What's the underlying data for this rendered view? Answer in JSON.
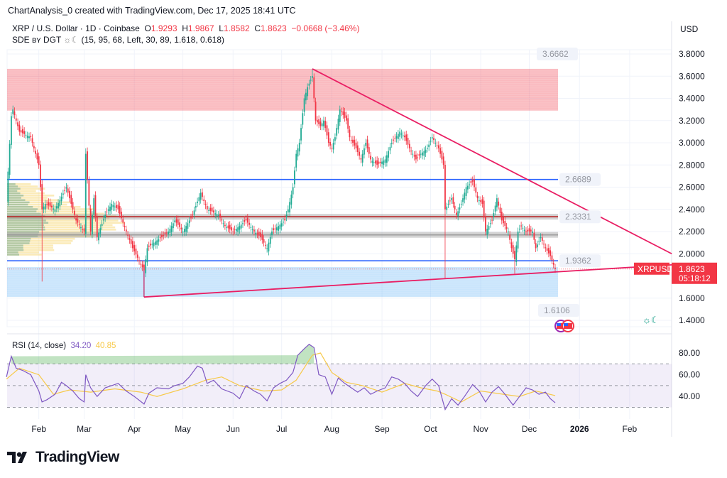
{
  "header": {
    "credit": "ChartAnalysis_0 created with TradingView.com, Dec 17, 2025 18:41 UTC",
    "symbol": "XRP / U.S. Dollar · 1D · Coinbase",
    "open_label": "O",
    "open": "1.9293",
    "high_label": "H",
    "high": "1.9867",
    "low_label": "L",
    "low": "1.8582",
    "close_label": "C",
    "close": "1.8623",
    "change": "−0.0668 (−3.46%)",
    "indicator": "SDE ʙʏ DGT",
    "indicator_icon": "sun-moon-icon",
    "indicator_params": "(15, 95, 68, Left, 30, 89, 1.618, 0.618)",
    "currency": "USD"
  },
  "colors": {
    "up": "#22ab94",
    "down": "#f23645",
    "accent": "#f23645",
    "rsi": "#7e57c2",
    "rsi_ma": "#f7c948",
    "support": "#2962ff",
    "trend": "#e91e63"
  },
  "chart_data": [
    {
      "type": "candlestick",
      "title": "XRP / U.S. Dollar · 1D · Coinbase",
      "ylim": [
        1.3,
        3.9
      ],
      "y_ticks": [
        "3.8000",
        "3.6000",
        "3.4000",
        "3.2000",
        "3.0000",
        "2.8000",
        "2.6000",
        "2.4000",
        "2.2000",
        "2.0000",
        "1.6000",
        "1.4000"
      ],
      "x_ticks": [
        [
          "2025-02-01",
          "Feb"
        ],
        [
          "2025-03-01",
          "Mar"
        ],
        [
          "2025-04-01",
          "Apr"
        ],
        [
          "2025-05-01",
          "May"
        ],
        [
          "2025-06-01",
          "Jun"
        ],
        [
          "2025-07-01",
          "Jul"
        ],
        [
          "2025-08-01",
          "Aug"
        ],
        [
          "2025-09-01",
          "Sep"
        ],
        [
          "2025-10-01",
          "Oct"
        ],
        [
          "2025-11-01",
          "Nov"
        ],
        [
          "2025-12-01",
          "Dec"
        ],
        [
          "2026-01-01",
          "2026"
        ],
        [
          "2026-02-01",
          "Feb"
        ]
      ],
      "closes": [
        [
          "2025-01-12",
          2.49
        ],
        [
          "2025-01-15",
          3.24
        ],
        [
          "2025-01-16",
          3.3
        ],
        [
          "2025-01-20",
          3.1
        ],
        [
          "2025-01-27",
          3.05
        ],
        [
          "2025-02-01",
          2.8
        ],
        [
          "2025-02-03",
          2.4
        ],
        [
          "2025-02-05",
          2.45
        ],
        [
          "2025-02-11",
          2.4
        ],
        [
          "2025-02-18",
          2.6
        ],
        [
          "2025-02-24",
          2.3
        ],
        [
          "2025-03-01",
          2.2
        ],
        [
          "2025-03-02",
          2.9
        ],
        [
          "2025-03-05",
          2.2
        ],
        [
          "2025-03-07",
          2.5
        ],
        [
          "2025-03-09",
          2.15
        ],
        [
          "2025-03-14",
          2.35
        ],
        [
          "2025-03-18",
          2.45
        ],
        [
          "2025-03-22",
          2.4
        ],
        [
          "2025-03-27",
          2.2
        ],
        [
          "2025-03-31",
          2.05
        ],
        [
          "2025-04-07",
          1.85
        ],
        [
          "2025-04-09",
          2.05
        ],
        [
          "2025-04-13",
          2.1
        ],
        [
          "2025-04-18",
          2.15
        ],
        [
          "2025-04-22",
          2.2
        ],
        [
          "2025-04-26",
          2.3
        ],
        [
          "2025-05-01",
          2.2
        ],
        [
          "2025-05-07",
          2.35
        ],
        [
          "2025-05-12",
          2.55
        ],
        [
          "2025-05-16",
          2.4
        ],
        [
          "2025-05-23",
          2.35
        ],
        [
          "2025-05-27",
          2.25
        ],
        [
          "2025-06-01",
          2.2
        ],
        [
          "2025-06-05",
          2.25
        ],
        [
          "2025-06-09",
          2.3
        ],
        [
          "2025-06-14",
          2.2
        ],
        [
          "2025-06-18",
          2.15
        ],
        [
          "2025-06-22",
          2.05
        ],
        [
          "2025-06-25",
          2.2
        ],
        [
          "2025-06-29",
          2.25
        ],
        [
          "2025-07-03",
          2.3
        ],
        [
          "2025-07-05",
          2.4
        ],
        [
          "2025-07-08",
          2.6
        ],
        [
          "2025-07-10",
          2.9
        ],
        [
          "2025-07-12",
          3.0
        ],
        [
          "2025-07-15",
          3.4
        ],
        [
          "2025-07-17",
          3.5
        ],
        [
          "2025-07-20",
          3.6
        ],
        [
          "2025-07-22",
          3.2
        ],
        [
          "2025-07-25",
          3.15
        ],
        [
          "2025-07-27",
          3.2
        ],
        [
          "2025-07-30",
          3.0
        ],
        [
          "2025-08-01",
          2.95
        ],
        [
          "2025-08-03",
          3.05
        ],
        [
          "2025-08-06",
          3.3
        ],
        [
          "2025-08-10",
          3.2
        ],
        [
          "2025-08-12",
          3.05
        ],
        [
          "2025-08-16",
          2.95
        ],
        [
          "2025-08-19",
          2.85
        ],
        [
          "2025-08-22",
          3.0
        ],
        [
          "2025-08-25",
          2.85
        ],
        [
          "2025-08-29",
          2.8
        ],
        [
          "2025-09-03",
          2.85
        ],
        [
          "2025-09-07",
          3.0
        ],
        [
          "2025-09-12",
          3.1
        ],
        [
          "2025-09-15",
          3.05
        ],
        [
          "2025-09-18",
          2.95
        ],
        [
          "2025-09-22",
          2.85
        ],
        [
          "2025-09-25",
          2.9
        ],
        [
          "2025-09-29",
          2.95
        ],
        [
          "2025-10-02",
          3.05
        ],
        [
          "2025-10-06",
          2.95
        ],
        [
          "2025-10-09",
          2.8
        ],
        [
          "2025-10-10",
          2.4
        ],
        [
          "2025-10-14",
          2.5
        ],
        [
          "2025-10-17",
          2.35
        ],
        [
          "2025-10-20",
          2.45
        ],
        [
          "2025-10-23",
          2.6
        ],
        [
          "2025-10-27",
          2.65
        ],
        [
          "2025-10-30",
          2.5
        ],
        [
          "2025-11-02",
          2.45
        ],
        [
          "2025-11-04",
          2.2
        ],
        [
          "2025-11-08",
          2.3
        ],
        [
          "2025-11-11",
          2.5
        ],
        [
          "2025-11-14",
          2.3
        ],
        [
          "2025-11-18",
          2.2
        ],
        [
          "2025-11-20",
          2.05
        ],
        [
          "2025-11-22",
          1.95
        ],
        [
          "2025-11-24",
          2.2
        ],
        [
          "2025-11-26",
          2.25
        ],
        [
          "2025-11-29",
          2.2
        ],
        [
          "2025-12-03",
          2.2
        ],
        [
          "2025-12-05",
          2.05
        ],
        [
          "2025-12-08",
          2.15
        ],
        [
          "2025-12-11",
          2.05
        ],
        [
          "2025-12-14",
          1.98
        ],
        [
          "2025-12-17",
          1.8623
        ]
      ],
      "wicks": [
        [
          "2025-02-03",
          1.75,
          "low"
        ],
        [
          "2025-03-02",
          2.95,
          "high"
        ],
        [
          "2025-04-07",
          1.61,
          "low"
        ],
        [
          "2025-07-20",
          3.666,
          "high"
        ],
        [
          "2025-10-10",
          1.78,
          "low"
        ],
        [
          "2025-11-22",
          1.82,
          "low"
        ]
      ],
      "zones": [
        {
          "from": 3.29,
          "to": 3.6662,
          "color": "#f23645"
        },
        {
          "from": 1.6106,
          "to": 1.88,
          "color": "#64b5f6"
        }
      ],
      "levels": [
        {
          "value": 2.6689,
          "label": "2.6689",
          "color": "#2962ff"
        },
        {
          "value": 2.3331,
          "label": "2.3331",
          "color": "#b71c1c"
        },
        {
          "value": 2.17,
          "label": "",
          "color": "#9e9e9e"
        },
        {
          "value": 1.9362,
          "label": "1.9362",
          "color": "#2962ff"
        }
      ],
      "zone_labels": [
        "3.6662",
        "1.6106"
      ],
      "trendlines": [
        {
          "from": [
            "2025-07-20",
            3.666
          ],
          "to": [
            "2026-02-27",
            2.0
          ]
        },
        {
          "from": [
            "2025-04-07",
            1.61
          ],
          "to": [
            "2026-02-27",
            1.9
          ]
        }
      ],
      "last_price": {
        "symbol": "XRPUSD",
        "price": "1.8623",
        "countdown": "05:18:12"
      }
    },
    {
      "type": "line",
      "title": "RSI (14, close)",
      "legend": [
        {
          "name": "RSI",
          "value": "34.20"
        },
        {
          "name": "MA",
          "value": "40.85"
        }
      ],
      "ylim": [
        25,
        92
      ],
      "y_ticks": [
        "80.00",
        "60.00",
        "40.00"
      ],
      "bands": [
        70,
        50,
        30
      ],
      "rsi": [
        [
          "2025-01-12",
          58
        ],
        [
          "2025-01-15",
          77
        ],
        [
          "2025-01-18",
          66
        ],
        [
          "2025-01-22",
          64
        ],
        [
          "2025-01-27",
          60
        ],
        [
          "2025-02-01",
          45
        ],
        [
          "2025-02-03",
          35
        ],
        [
          "2025-02-06",
          37
        ],
        [
          "2025-02-11",
          42
        ],
        [
          "2025-02-15",
          53
        ],
        [
          "2025-02-18",
          50
        ],
        [
          "2025-02-22",
          45
        ],
        [
          "2025-02-26",
          38
        ],
        [
          "2025-03-01",
          35
        ],
        [
          "2025-03-02",
          60
        ],
        [
          "2025-03-05",
          48
        ],
        [
          "2025-03-09",
          40
        ],
        [
          "2025-03-14",
          48
        ],
        [
          "2025-03-18",
          50
        ],
        [
          "2025-03-22",
          52
        ],
        [
          "2025-03-27",
          45
        ],
        [
          "2025-04-01",
          40
        ],
        [
          "2025-04-07",
          33
        ],
        [
          "2025-04-10",
          43
        ],
        [
          "2025-04-15",
          48
        ],
        [
          "2025-04-22",
          47
        ],
        [
          "2025-04-26",
          50
        ],
        [
          "2025-05-01",
          52
        ],
        [
          "2025-05-05",
          58
        ],
        [
          "2025-05-10",
          68
        ],
        [
          "2025-05-13",
          66
        ],
        [
          "2025-05-16",
          52
        ],
        [
          "2025-05-20",
          55
        ],
        [
          "2025-05-25",
          47
        ],
        [
          "2025-06-01",
          43
        ],
        [
          "2025-06-05",
          38
        ],
        [
          "2025-06-09",
          50
        ],
        [
          "2025-06-14",
          45
        ],
        [
          "2025-06-18",
          42
        ],
        [
          "2025-06-22",
          36
        ],
        [
          "2025-06-26",
          48
        ],
        [
          "2025-06-30",
          52
        ],
        [
          "2025-07-04",
          55
        ],
        [
          "2025-07-08",
          62
        ],
        [
          "2025-07-11",
          78
        ],
        [
          "2025-07-15",
          84
        ],
        [
          "2025-07-18",
          88
        ],
        [
          "2025-07-21",
          85
        ],
        [
          "2025-07-24",
          60
        ],
        [
          "2025-07-28",
          58
        ],
        [
          "2025-08-01",
          42
        ],
        [
          "2025-08-05",
          57
        ],
        [
          "2025-08-09",
          52
        ],
        [
          "2025-08-13",
          48
        ],
        [
          "2025-08-17",
          44
        ],
        [
          "2025-08-21",
          48
        ],
        [
          "2025-08-25",
          42
        ],
        [
          "2025-08-29",
          45
        ],
        [
          "2025-09-03",
          48
        ],
        [
          "2025-09-07",
          58
        ],
        [
          "2025-09-11",
          56
        ],
        [
          "2025-09-15",
          52
        ],
        [
          "2025-09-19",
          45
        ],
        [
          "2025-09-23",
          40
        ],
        [
          "2025-09-28",
          50
        ],
        [
          "2025-10-02",
          56
        ],
        [
          "2025-10-06",
          50
        ],
        [
          "2025-10-10",
          28
        ],
        [
          "2025-10-14",
          38
        ],
        [
          "2025-10-18",
          32
        ],
        [
          "2025-10-22",
          40
        ],
        [
          "2025-10-27",
          51
        ],
        [
          "2025-10-31",
          45
        ],
        [
          "2025-11-04",
          35
        ],
        [
          "2025-11-08",
          44
        ],
        [
          "2025-11-12",
          49
        ],
        [
          "2025-11-16",
          42
        ],
        [
          "2025-11-21",
          32
        ],
        [
          "2025-11-25",
          40
        ],
        [
          "2025-11-29",
          48
        ],
        [
          "2025-12-03",
          46
        ],
        [
          "2025-12-07",
          42
        ],
        [
          "2025-12-11",
          44
        ],
        [
          "2025-12-14",
          38
        ],
        [
          "2025-12-17",
          34.2
        ]
      ],
      "rsi_ma": [
        [
          "2025-01-12",
          56
        ],
        [
          "2025-01-20",
          66
        ],
        [
          "2025-02-01",
          60
        ],
        [
          "2025-02-10",
          42
        ],
        [
          "2025-02-20",
          46
        ],
        [
          "2025-03-05",
          44
        ],
        [
          "2025-03-20",
          47
        ],
        [
          "2025-04-05",
          44
        ],
        [
          "2025-04-15",
          40
        ],
        [
          "2025-05-01",
          47
        ],
        [
          "2025-05-15",
          55
        ],
        [
          "2025-05-25",
          58
        ],
        [
          "2025-06-05",
          50
        ],
        [
          "2025-06-20",
          45
        ],
        [
          "2025-07-01",
          46
        ],
        [
          "2025-07-10",
          55
        ],
        [
          "2025-07-20",
          78
        ],
        [
          "2025-07-25",
          80
        ],
        [
          "2025-08-01",
          62
        ],
        [
          "2025-08-10",
          53
        ],
        [
          "2025-08-20",
          50
        ],
        [
          "2025-09-01",
          44
        ],
        [
          "2025-09-15",
          52
        ],
        [
          "2025-09-25",
          48
        ],
        [
          "2025-10-05",
          45
        ],
        [
          "2025-10-10",
          42
        ],
        [
          "2025-10-20",
          35
        ],
        [
          "2025-11-01",
          45
        ],
        [
          "2025-11-15",
          42
        ],
        [
          "2025-11-25",
          40
        ],
        [
          "2025-12-05",
          45
        ],
        [
          "2025-12-17",
          40.85
        ]
      ]
    }
  ],
  "footer": {
    "brand": "TradingView"
  }
}
